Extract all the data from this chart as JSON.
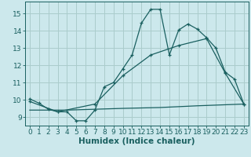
{
  "xlabel": "Humidex (Indice chaleur)",
  "bg_color": "#cce8ec",
  "grid_color": "#aacccc",
  "line_color": "#1a6060",
  "ylim": [
    8.5,
    15.7
  ],
  "xlim": [
    -0.5,
    23.5
  ],
  "yticks": [
    9,
    10,
    11,
    12,
    13,
    14,
    15
  ],
  "xticks": [
    0,
    1,
    2,
    3,
    4,
    5,
    6,
    7,
    8,
    9,
    10,
    11,
    12,
    13,
    14,
    15,
    16,
    17,
    18,
    19,
    20,
    21,
    22,
    23
  ],
  "line1_x": [
    0,
    1,
    2,
    3,
    4,
    5,
    6,
    7,
    8,
    9,
    10,
    11,
    12,
    13,
    14,
    15,
    16,
    17,
    18,
    19,
    20,
    21,
    22,
    23
  ],
  "line1_y": [
    10.05,
    9.8,
    9.45,
    9.3,
    9.3,
    8.78,
    8.78,
    9.4,
    10.75,
    11.0,
    11.8,
    12.6,
    14.45,
    15.25,
    15.25,
    12.6,
    14.05,
    14.4,
    14.1,
    13.6,
    13.0,
    11.6,
    11.2,
    9.75
  ],
  "line2_x": [
    0,
    3,
    7,
    10,
    13,
    16,
    19,
    21,
    23
  ],
  "line2_y": [
    9.9,
    9.3,
    9.75,
    11.4,
    12.6,
    13.15,
    13.55,
    11.55,
    9.75
  ],
  "line3_x": [
    0,
    4,
    10,
    14,
    18,
    23
  ],
  "line3_y": [
    9.4,
    9.4,
    9.5,
    9.55,
    9.65,
    9.75
  ],
  "tick_font_size": 6.5,
  "label_font_size": 7.5
}
